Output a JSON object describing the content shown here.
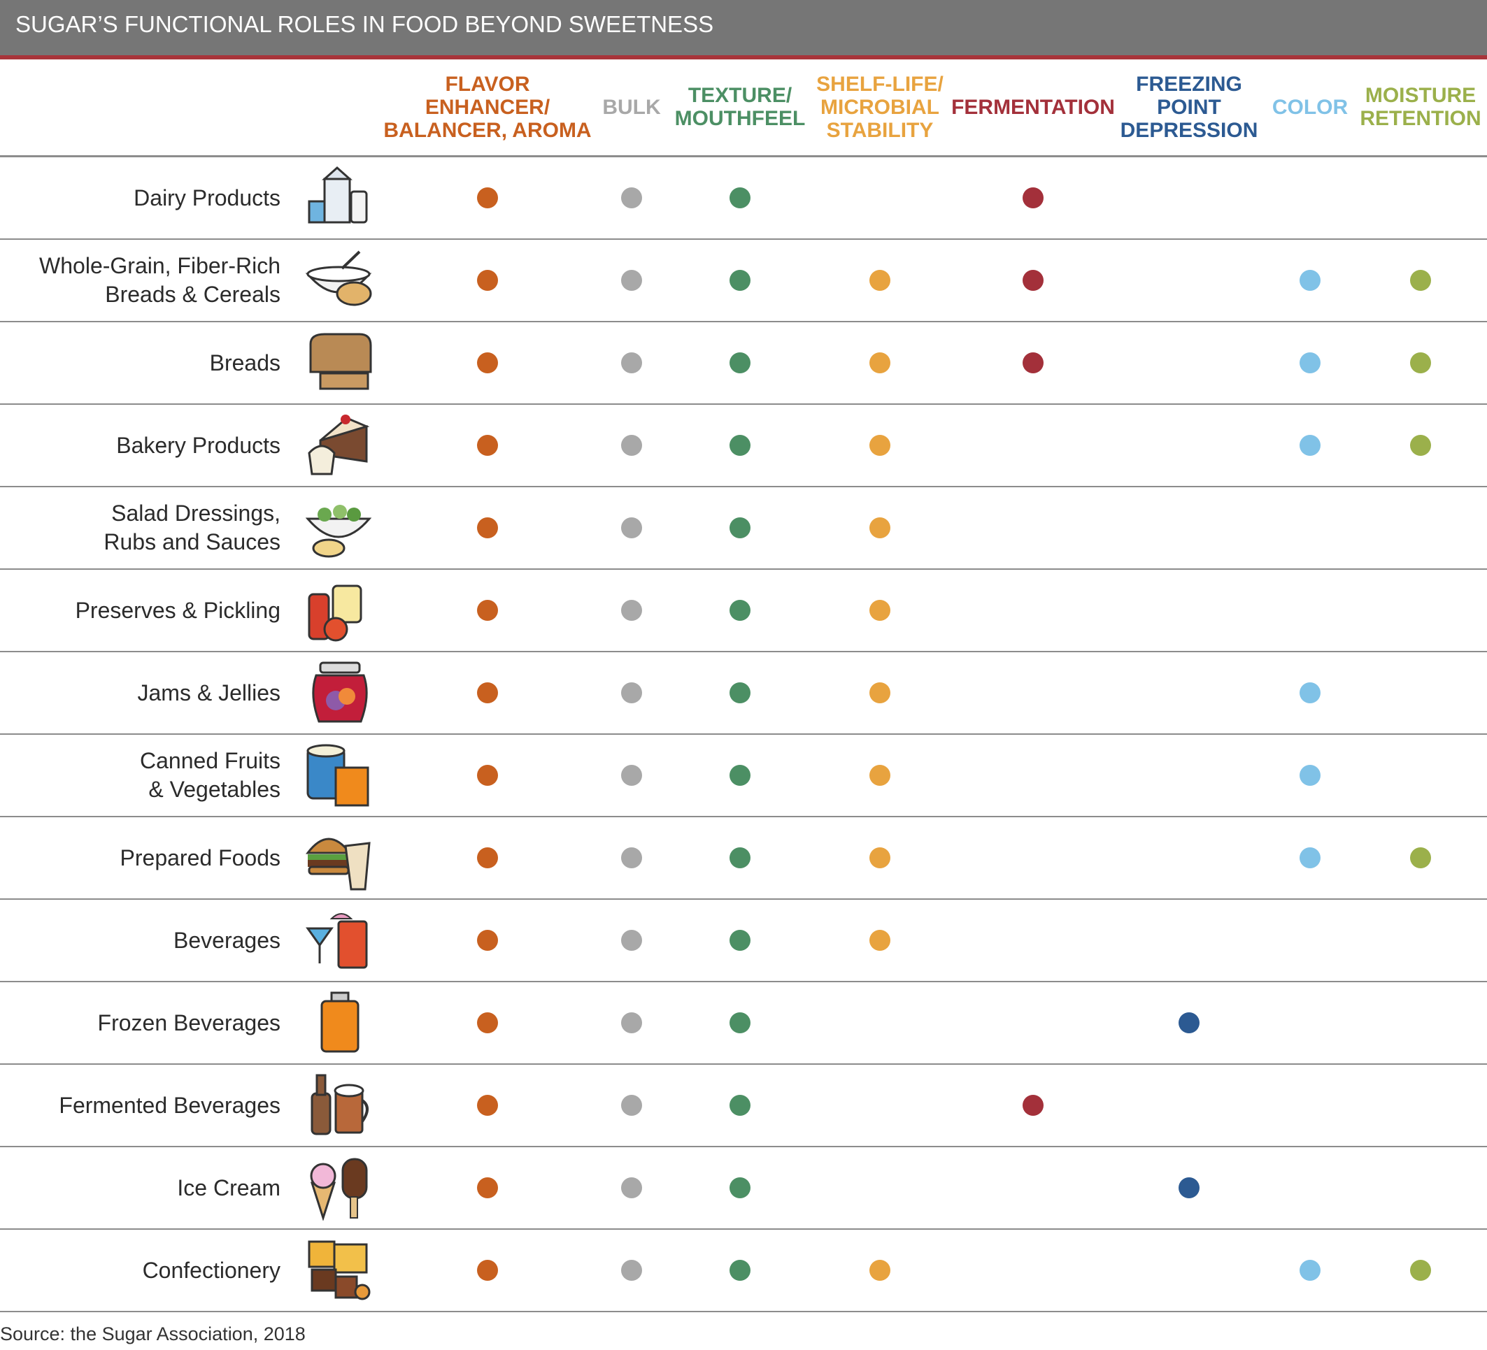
{
  "title": "SUGAR’S FUNCTIONAL ROLES IN FOOD BEYOND SWEETNESS",
  "columns": [
    {
      "lines": [
        "FLAVOR",
        "ENHANCER/",
        "BALANCER, AROMA"
      ],
      "color": "#c8601f"
    },
    {
      "lines": [
        "BULK"
      ],
      "color": "#a8a8a8"
    },
    {
      "lines": [
        "TEXTURE/",
        "MOUTHFEEL"
      ],
      "color": "#4c8f64"
    },
    {
      "lines": [
        "SHELF-LIFE/",
        "MICROBIAL",
        "STABILITY"
      ],
      "color": "#e8a33f"
    },
    {
      "lines": [
        "FERMENTATION"
      ],
      "color": "#a3303a"
    },
    {
      "lines": [
        "FREEZING",
        "POINT",
        "DEPRESSION"
      ],
      "color": "#2c5a92"
    },
    {
      "lines": [
        "COLOR"
      ],
      "color": "#80c2e7"
    },
    {
      "lines": [
        "MOISTURE",
        "RETENTION"
      ],
      "color": "#9bb04b"
    }
  ],
  "rows": [
    {
      "lines": [
        "Dairy Products"
      ],
      "icon": "milk-carton-icon",
      "marks": [
        1,
        1,
        1,
        0,
        1,
        0,
        0,
        0
      ]
    },
    {
      "lines": [
        "Whole-Grain, Fiber-Rich",
        "Breads & Cereals"
      ],
      "icon": "cereal-bowl-icon",
      "marks": [
        1,
        1,
        1,
        1,
        1,
        0,
        1,
        1
      ]
    },
    {
      "lines": [
        "Breads"
      ],
      "icon": "bread-loaf-icon",
      "marks": [
        1,
        1,
        1,
        1,
        1,
        0,
        1,
        1
      ]
    },
    {
      "lines": [
        "Bakery Products"
      ],
      "icon": "cake-slice-icon",
      "marks": [
        1,
        1,
        1,
        1,
        0,
        0,
        1,
        1
      ]
    },
    {
      "lines": [
        "Salad Dressings,",
        "Rubs and Sauces"
      ],
      "icon": "salad-bowl-icon",
      "marks": [
        1,
        1,
        1,
        1,
        0,
        0,
        0,
        0
      ]
    },
    {
      "lines": [
        "Preserves & Pickling"
      ],
      "icon": "ketchup-jar-icon",
      "marks": [
        1,
        1,
        1,
        1,
        0,
        0,
        0,
        0
      ]
    },
    {
      "lines": [
        "Jams & Jellies"
      ],
      "icon": "jam-jar-icon",
      "marks": [
        1,
        1,
        1,
        1,
        0,
        0,
        1,
        0
      ]
    },
    {
      "lines": [
        "Canned Fruits",
        "& Vegetables"
      ],
      "icon": "can-juice-box-icon",
      "marks": [
        1,
        1,
        1,
        1,
        0,
        0,
        1,
        0
      ]
    },
    {
      "lines": [
        "Prepared Foods"
      ],
      "icon": "burger-wrap-icon",
      "marks": [
        1,
        1,
        1,
        1,
        0,
        0,
        1,
        1
      ]
    },
    {
      "lines": [
        "Beverages"
      ],
      "icon": "cocktail-icon",
      "marks": [
        1,
        1,
        1,
        1,
        0,
        0,
        0,
        0
      ]
    },
    {
      "lines": [
        "Frozen Beverages"
      ],
      "icon": "beverage-can-icon",
      "marks": [
        1,
        1,
        1,
        0,
        0,
        1,
        0,
        0
      ]
    },
    {
      "lines": [
        "Fermented Beverages"
      ],
      "icon": "beer-bottle-mug-icon",
      "marks": [
        1,
        1,
        1,
        0,
        1,
        0,
        0,
        0
      ]
    },
    {
      "lines": [
        "Ice Cream"
      ],
      "icon": "ice-cream-icon",
      "marks": [
        1,
        1,
        1,
        0,
        0,
        1,
        0,
        0
      ]
    },
    {
      "lines": [
        "Confectionery"
      ],
      "icon": "candy-icon",
      "marks": [
        1,
        1,
        1,
        1,
        0,
        0,
        1,
        1
      ]
    }
  ],
  "source": "Source: the Sugar Association, 2018"
}
